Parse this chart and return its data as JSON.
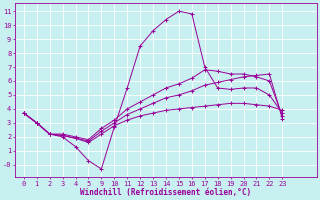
{
  "background_color": "#c8f0f0",
  "line_color": "#990099",
  "grid_color": "#ffffff",
  "xlabel": "Windchill (Refroidissement éolien,°C)",
  "xlabel_fontsize": 5.5,
  "tick_fontsize": 5,
  "tick_color": "#990099",
  "xlim": [
    -0.7,
    22.7
  ],
  "ylim": [
    -0.9,
    11.6
  ],
  "xtick_labels": [
    "0",
    "1",
    "2",
    "3",
    "4",
    "5",
    "9",
    "10",
    "11",
    "12",
    "13",
    "14",
    "15",
    "16",
    "17",
    "18",
    "19",
    "20",
    "21",
    "22",
    "23"
  ],
  "ytick_labels": [
    "-0",
    "1",
    "2",
    "3",
    "4",
    "5",
    "6",
    "7",
    "8",
    "9",
    "10",
    "11"
  ],
  "ytick_vals": [
    0,
    1,
    2,
    3,
    4,
    5,
    6,
    7,
    8,
    9,
    10,
    11
  ],
  "lines": [
    {
      "xi": [
        0,
        1,
        2,
        3,
        4,
        5,
        6,
        7,
        8,
        9,
        10,
        11,
        12,
        13,
        14,
        15,
        16,
        17,
        18,
        19,
        20
      ],
      "y": [
        3.7,
        3.0,
        2.2,
        2.0,
        1.3,
        0.3,
        -0.3,
        2.7,
        5.5,
        8.5,
        9.6,
        10.4,
        11.0,
        10.8,
        7.0,
        5.5,
        5.4,
        5.5,
        5.5,
        5.0,
        3.7
      ]
    },
    {
      "xi": [
        0,
        1,
        2,
        3,
        4,
        5,
        6,
        7,
        8,
        9,
        10,
        11,
        12,
        13,
        14,
        15,
        16,
        17,
        18,
        19,
        20
      ],
      "y": [
        3.7,
        3.0,
        2.2,
        2.2,
        2.0,
        1.8,
        2.6,
        3.2,
        4.0,
        4.5,
        5.0,
        5.5,
        5.8,
        6.2,
        6.8,
        6.7,
        6.5,
        6.5,
        6.3,
        6.0,
        3.5
      ]
    },
    {
      "xi": [
        0,
        1,
        2,
        3,
        4,
        5,
        6,
        7,
        8,
        9,
        10,
        11,
        12,
        13,
        14,
        15,
        16,
        17,
        18,
        19,
        20
      ],
      "y": [
        3.7,
        3.0,
        2.2,
        2.1,
        1.9,
        1.7,
        2.4,
        3.0,
        3.6,
        4.0,
        4.4,
        4.8,
        5.0,
        5.3,
        5.7,
        5.9,
        6.1,
        6.3,
        6.4,
        6.5,
        3.3
      ]
    },
    {
      "xi": [
        0,
        1,
        2,
        3,
        4,
        5,
        6,
        7,
        8,
        9,
        10,
        11,
        12,
        13,
        14,
        15,
        16,
        17,
        18,
        19,
        20
      ],
      "y": [
        3.7,
        3.0,
        2.2,
        2.1,
        1.9,
        1.6,
        2.2,
        2.8,
        3.2,
        3.5,
        3.7,
        3.9,
        4.0,
        4.1,
        4.2,
        4.3,
        4.4,
        4.4,
        4.3,
        4.2,
        3.9
      ]
    }
  ]
}
